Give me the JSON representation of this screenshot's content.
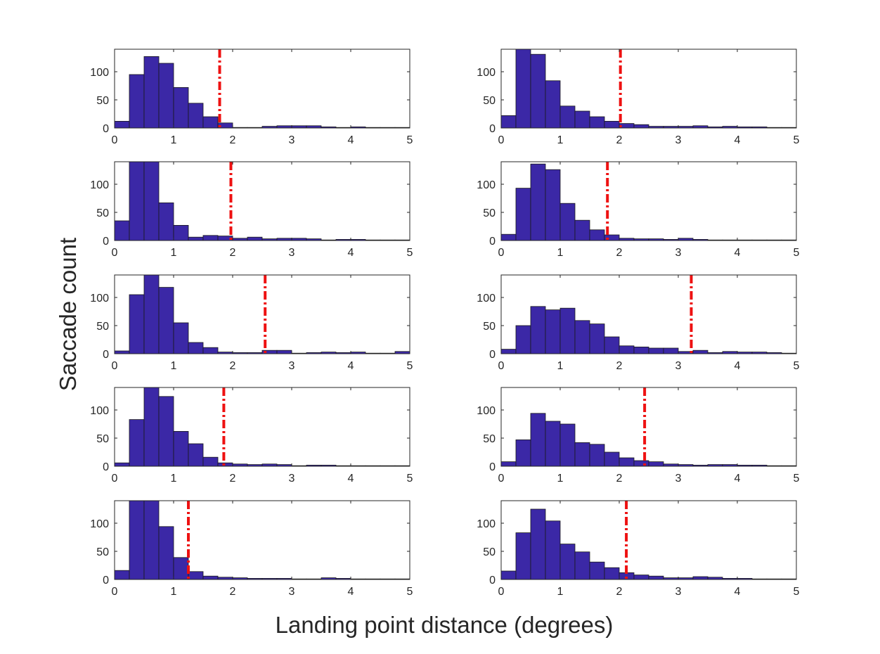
{
  "chart_data": {
    "type": "bar",
    "layout": "5x2 grid of histograms",
    "xlabel": "Landing point distance (degrees)",
    "ylabel": "Saccade count",
    "xlim": [
      0,
      5
    ],
    "ylim": [
      0,
      140
    ],
    "xticks": [
      0,
      1,
      2,
      3,
      4,
      5
    ],
    "yticks": [
      0,
      50,
      100
    ],
    "bin_width": 0.25,
    "colors": {
      "bar": "#3b28a6",
      "threshold": "#ee1111"
    },
    "panels": [
      {
        "name": "panel-r1-c1",
        "threshold": 1.78,
        "counts": [
          12,
          95,
          127,
          115,
          72,
          44,
          20,
          9,
          1,
          1,
          3,
          4,
          4,
          4,
          2,
          1,
          2,
          1,
          1,
          1,
          5
        ]
      },
      {
        "name": "panel-r1-c2",
        "threshold": 2.02,
        "counts": [
          22,
          145,
          131,
          84,
          39,
          30,
          20,
          12,
          8,
          6,
          3,
          3,
          3,
          4,
          2,
          3,
          2,
          2,
          1,
          1,
          4,
          2
        ]
      },
      {
        "name": "panel-r2-c1",
        "threshold": 1.97,
        "counts": [
          35,
          155,
          155,
          67,
          27,
          6,
          9,
          8,
          4,
          6,
          3,
          4,
          4,
          3,
          1,
          2,
          2,
          1,
          1,
          1,
          1,
          1
        ]
      },
      {
        "name": "panel-r2-c2",
        "threshold": 1.8,
        "counts": [
          11,
          93,
          136,
          126,
          66,
          36,
          19,
          10,
          4,
          3,
          3,
          2,
          4,
          2,
          1,
          1,
          1,
          1,
          1,
          1,
          1,
          1
        ]
      },
      {
        "name": "panel-r3-c1",
        "threshold": 2.55,
        "counts": [
          5,
          105,
          145,
          118,
          55,
          20,
          11,
          3,
          2,
          2,
          6,
          6,
          1,
          2,
          3,
          2,
          3,
          1,
          1,
          4,
          3,
          3
        ]
      },
      {
        "name": "panel-r3-c2",
        "threshold": 3.22,
        "counts": [
          8,
          50,
          84,
          78,
          81,
          59,
          53,
          30,
          14,
          12,
          10,
          10,
          4,
          6,
          2,
          4,
          3,
          3,
          2,
          1,
          11
        ]
      },
      {
        "name": "panel-r4-c1",
        "threshold": 1.85,
        "counts": [
          6,
          83,
          150,
          124,
          62,
          40,
          16,
          6,
          4,
          3,
          4,
          3,
          1,
          2,
          2,
          1,
          1,
          1,
          1,
          1,
          9
        ]
      },
      {
        "name": "panel-r4-c2",
        "threshold": 2.43,
        "counts": [
          8,
          47,
          94,
          80,
          75,
          42,
          39,
          25,
          15,
          10,
          8,
          4,
          3,
          2,
          3,
          3,
          2,
          2,
          1,
          1,
          4,
          9
        ]
      },
      {
        "name": "panel-r5-c1",
        "threshold": 1.25,
        "counts": [
          16,
          155,
          155,
          94,
          39,
          14,
          6,
          4,
          3,
          2,
          2,
          2,
          1,
          1,
          3,
          2,
          1,
          1,
          1,
          1,
          1,
          5
        ]
      },
      {
        "name": "panel-r5-c2",
        "threshold": 2.12,
        "counts": [
          15,
          83,
          125,
          104,
          63,
          49,
          31,
          21,
          12,
          8,
          6,
          3,
          3,
          5,
          4,
          2,
          2,
          1,
          1,
          1,
          1,
          3
        ]
      }
    ]
  }
}
